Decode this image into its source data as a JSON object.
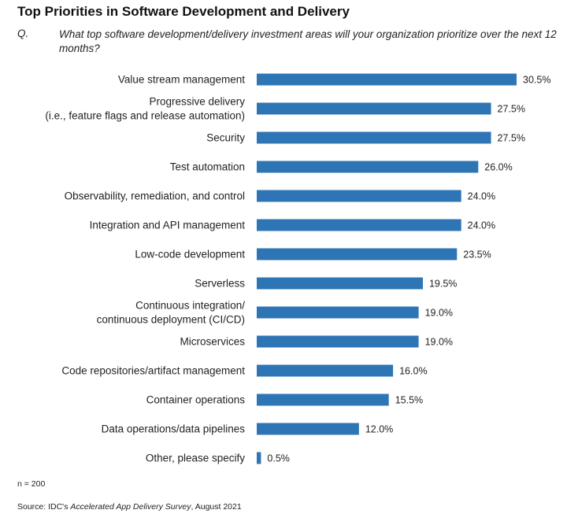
{
  "header": {
    "title": "Top Priorities in Software Development and Delivery",
    "question_label": "Q.",
    "question_text": "What top software development/delivery investment areas will your organization prioritize over the next 12 months?"
  },
  "footer": {
    "sample_size": "n = 200",
    "source_prefix": "Source: IDC's ",
    "source_title": "Accelerated App Delivery Survey",
    "source_suffix": ", August 2021"
  },
  "chart_data": {
    "type": "bar",
    "orientation": "horizontal",
    "bar_color": "#2e75b6",
    "categories": [
      [
        "Value stream management"
      ],
      [
        "Progressive delivery",
        "(i.e., feature flags and release automation)"
      ],
      [
        "Security"
      ],
      [
        "Test automation"
      ],
      [
        "Observability, remediation, and control"
      ],
      [
        "Integration and API management"
      ],
      [
        "Low-code development"
      ],
      [
        "Serverless"
      ],
      [
        "Continuous integration/",
        "continuous deployment (CI/CD)"
      ],
      [
        "Microservices"
      ],
      [
        "Code repositories/artifact management"
      ],
      [
        "Container operations"
      ],
      [
        "Data operations/data pipelines"
      ],
      [
        "Other, please specify"
      ]
    ],
    "values": [
      30.5,
      27.5,
      27.5,
      26.0,
      24.0,
      24.0,
      23.5,
      19.5,
      19.0,
      19.0,
      16.0,
      15.5,
      12.0,
      0.5
    ],
    "value_labels": [
      "30.5%",
      "27.5%",
      "27.5%",
      "26.0%",
      "24.0%",
      "24.0%",
      "23.5%",
      "19.5%",
      "19.0%",
      "19.0%",
      "16.0%",
      "15.5%",
      "12.0%",
      "0.5%"
    ],
    "xlim": [
      0,
      30.5
    ],
    "grid": false,
    "legend": "none"
  }
}
